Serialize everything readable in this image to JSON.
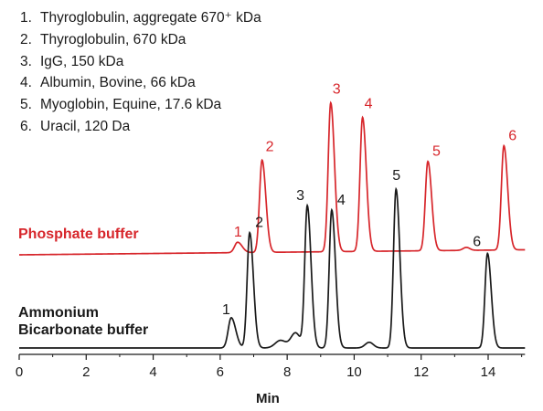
{
  "chart_data": {
    "type": "line",
    "xlabel": "Min",
    "ylabel": "",
    "xlim": [
      0,
      15.1
    ],
    "x_ticks": [
      0,
      2,
      4,
      6,
      8,
      10,
      12,
      14
    ],
    "grid": false,
    "legend": {
      "placement": "top-left",
      "entries": [
        {
          "num": "1.",
          "label": "Thyroglobulin, aggregate 670⁺ kDa"
        },
        {
          "num": "2.",
          "label": "Thyroglobulin, 670 kDa"
        },
        {
          "num": "3.",
          "label": "IgG, 150 kDa"
        },
        {
          "num": "4.",
          "label": "Albumin, Bovine, 66 kDa"
        },
        {
          "num": "5.",
          "label": "Myoglobin, Equine, 17.6 kDa"
        },
        {
          "num": "6.",
          "label": "Uracil, 120 Da"
        }
      ]
    },
    "series": [
      {
        "name": "Phosphate buffer",
        "color": "#d7262b",
        "baseline": 0,
        "peaks": [
          {
            "label": "1",
            "x": 6.52,
            "height": 0.07
          },
          {
            "label": "2",
            "x": 7.25,
            "height": 0.62
          },
          {
            "label": "3",
            "x": 9.3,
            "height": 1.0
          },
          {
            "label": "4",
            "x": 10.25,
            "height": 0.9
          },
          {
            "label": "5",
            "x": 12.2,
            "height": 0.6
          },
          {
            "label": "6",
            "x": 14.47,
            "height": 0.7
          }
        ]
      },
      {
        "name": "Ammonium Bicarbonate buffer",
        "name_lines": [
          "Ammonium",
          "Bicarbonate buffer"
        ],
        "color": "#1a1a1a",
        "baseline": 0,
        "peaks": [
          {
            "label": "1",
            "x": 6.33,
            "height": 0.16
          },
          {
            "label": "2",
            "x": 6.88,
            "height": 0.61
          },
          {
            "label": "3",
            "x": 8.6,
            "height": 0.75
          },
          {
            "label": "4",
            "x": 9.33,
            "height": 0.73
          },
          {
            "label": "5",
            "x": 11.25,
            "height": 0.84
          },
          {
            "label": "6",
            "x": 13.98,
            "height": 0.5
          }
        ]
      }
    ]
  }
}
